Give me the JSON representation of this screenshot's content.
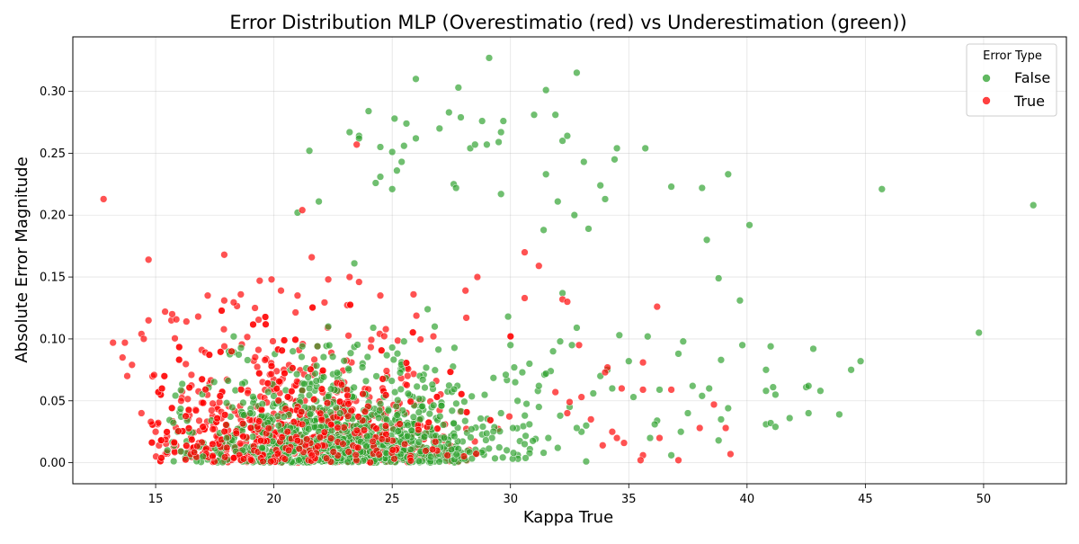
{
  "chart_data": {
    "type": "scatter",
    "title": "Error Distribution MLP (Overestimatio (red) vs Underestimation (green))",
    "xlabel": "Kappa True",
    "ylabel": "Absolute Error Magnitude",
    "xlim": [
      11.5,
      53.5
    ],
    "ylim": [
      -0.017,
      0.344
    ],
    "xticks": [
      15,
      20,
      25,
      30,
      35,
      40,
      45,
      50
    ],
    "yticks": [
      0.0,
      0.05,
      0.1,
      0.15,
      0.2,
      0.25,
      0.3
    ],
    "ytick_labels": [
      "0.00",
      "0.05",
      "0.10",
      "0.15",
      "0.20",
      "0.25",
      "0.30"
    ],
    "grid": true,
    "legend": {
      "title": "Error Type",
      "placement": "top-right",
      "entries": [
        "False",
        "True"
      ]
    },
    "colors": {
      "False": "#2ca02c",
      "True": "#ff0000"
    },
    "series": [
      {
        "name": "False",
        "points": [
          [
            15.5,
            0.01
          ],
          [
            17.0,
            0.005
          ],
          [
            18.3,
            0.102
          ],
          [
            18.0,
            0.02
          ],
          [
            19.0,
            0.04
          ],
          [
            19.5,
            0.012
          ],
          [
            20.2,
            0.03
          ],
          [
            20.8,
            0.09
          ],
          [
            21.0,
            0.202
          ],
          [
            21.5,
            0.252
          ],
          [
            21.9,
            0.211
          ],
          [
            21.5,
            0.06
          ],
          [
            22.3,
            0.11
          ],
          [
            22.8,
            0.04
          ],
          [
            23.2,
            0.267
          ],
          [
            23.6,
            0.264
          ],
          [
            23.6,
            0.262
          ],
          [
            23.4,
            0.161
          ],
          [
            24.0,
            0.284
          ],
          [
            24.3,
            0.226
          ],
          [
            24.5,
            0.231
          ],
          [
            24.5,
            0.255
          ],
          [
            25.0,
            0.221
          ],
          [
            25.0,
            0.251
          ],
          [
            25.1,
            0.278
          ],
          [
            25.2,
            0.236
          ],
          [
            25.4,
            0.243
          ],
          [
            25.5,
            0.256
          ],
          [
            25.6,
            0.274
          ],
          [
            26.0,
            0.262
          ],
          [
            26.0,
            0.31
          ],
          [
            27.0,
            0.27
          ],
          [
            27.4,
            0.283
          ],
          [
            27.6,
            0.225
          ],
          [
            27.7,
            0.222
          ],
          [
            27.8,
            0.303
          ],
          [
            27.9,
            0.279
          ],
          [
            28.3,
            0.254
          ],
          [
            28.5,
            0.257
          ],
          [
            28.8,
            0.276
          ],
          [
            29.0,
            0.257
          ],
          [
            29.1,
            0.327
          ],
          [
            29.5,
            0.259
          ],
          [
            29.6,
            0.267
          ],
          [
            29.6,
            0.217
          ],
          [
            29.7,
            0.276
          ],
          [
            29.9,
            0.118
          ],
          [
            31.0,
            0.281
          ],
          [
            31.5,
            0.301
          ],
          [
            31.5,
            0.233
          ],
          [
            31.4,
            0.188
          ],
          [
            31.9,
            0.281
          ],
          [
            32.0,
            0.211
          ],
          [
            32.2,
            0.26
          ],
          [
            32.4,
            0.264
          ],
          [
            32.7,
            0.2
          ],
          [
            32.8,
            0.315
          ],
          [
            33.1,
            0.243
          ],
          [
            33.3,
            0.189
          ],
          [
            33.8,
            0.224
          ],
          [
            34.0,
            0.213
          ],
          [
            34.4,
            0.245
          ],
          [
            34.5,
            0.254
          ],
          [
            35.7,
            0.254
          ],
          [
            36.8,
            0.223
          ],
          [
            38.1,
            0.222
          ],
          [
            38.3,
            0.18
          ],
          [
            38.8,
            0.149
          ],
          [
            39.2,
            0.233
          ],
          [
            39.7,
            0.131
          ],
          [
            40.1,
            0.192
          ],
          [
            45.7,
            0.221
          ],
          [
            52.1,
            0.208
          ],
          [
            49.8,
            0.105
          ],
          [
            34.6,
            0.103
          ],
          [
            35.0,
            0.082
          ],
          [
            35.8,
            0.102
          ],
          [
            37.3,
            0.098
          ],
          [
            37.1,
            0.088
          ],
          [
            38.9,
            0.083
          ],
          [
            39.8,
            0.095
          ],
          [
            41.0,
            0.094
          ],
          [
            42.8,
            0.092
          ],
          [
            44.8,
            0.082
          ],
          [
            44.4,
            0.075
          ],
          [
            40.8,
            0.075
          ],
          [
            41.1,
            0.061
          ],
          [
            41.2,
            0.055
          ],
          [
            40.8,
            0.058
          ],
          [
            42.5,
            0.061
          ],
          [
            42.6,
            0.062
          ],
          [
            43.1,
            0.058
          ],
          [
            41.8,
            0.036
          ],
          [
            42.6,
            0.04
          ],
          [
            43.9,
            0.039
          ],
          [
            40.8,
            0.031
          ],
          [
            41.0,
            0.032
          ],
          [
            41.2,
            0.029
          ],
          [
            38.9,
            0.035
          ],
          [
            39.2,
            0.044
          ],
          [
            38.8,
            0.018
          ],
          [
            38.4,
            0.06
          ],
          [
            38.1,
            0.054
          ],
          [
            37.7,
            0.062
          ],
          [
            37.5,
            0.04
          ],
          [
            36.8,
            0.006
          ],
          [
            37.2,
            0.025
          ],
          [
            36.3,
            0.059
          ],
          [
            36.2,
            0.034
          ],
          [
            36.1,
            0.031
          ],
          [
            35.9,
            0.02
          ],
          [
            35.2,
            0.053
          ],
          [
            34.3,
            0.06
          ],
          [
            34.1,
            0.075
          ],
          [
            33.8,
            0.07
          ],
          [
            33.5,
            0.056
          ],
          [
            33.2,
            0.03
          ],
          [
            33.0,
            0.025
          ],
          [
            32.8,
            0.109
          ],
          [
            32.6,
            0.095
          ],
          [
            32.2,
            0.137
          ],
          [
            32.1,
            0.098
          ],
          [
            31.8,
            0.09
          ],
          [
            31.7,
            0.074
          ],
          [
            31.5,
            0.072
          ],
          [
            31.2,
            0.062
          ],
          [
            30.8,
            0.08
          ],
          [
            30.5,
            0.073
          ],
          [
            30.2,
            0.065
          ],
          [
            30.0,
            0.095
          ],
          [
            29.8,
            0.071
          ],
          [
            30.3,
            0.05
          ],
          [
            30.8,
            0.031
          ],
          [
            31.2,
            0.045
          ],
          [
            31.6,
            0.02
          ],
          [
            32.1,
            0.038
          ],
          [
            32.5,
            0.045
          ],
          [
            32.8,
            0.028
          ],
          [
            33.2,
            0.001
          ],
          [
            32.0,
            0.012
          ],
          [
            31.4,
            0.008
          ],
          [
            30.6,
            0.015
          ],
          [
            30.1,
            0.028
          ],
          [
            29.6,
            0.04
          ],
          [
            26.5,
            0.124
          ],
          [
            26.8,
            0.11
          ],
          [
            25.5,
            0.098
          ],
          [
            24.2,
            0.109
          ],
          [
            21.2,
            0.094
          ]
        ],
        "cluster": {
          "description": "dense band of overlapping points",
          "x_range": [
            15.5,
            31.5
          ],
          "y_range": [
            0.0,
            0.1
          ]
        }
      },
      {
        "name": "True",
        "points": [
          [
            12.8,
            0.213
          ],
          [
            14.7,
            0.164
          ],
          [
            17.9,
            0.168
          ],
          [
            21.2,
            0.204
          ],
          [
            21.6,
            0.166
          ],
          [
            23.5,
            0.257
          ],
          [
            13.2,
            0.097
          ],
          [
            13.7,
            0.097
          ],
          [
            13.8,
            0.07
          ],
          [
            14.0,
            0.079
          ],
          [
            13.6,
            0.085
          ],
          [
            14.4,
            0.104
          ],
          [
            14.5,
            0.1
          ],
          [
            14.7,
            0.115
          ],
          [
            14.4,
            0.04
          ],
          [
            14.8,
            0.033
          ],
          [
            15.0,
            0.025
          ],
          [
            15.4,
            0.122
          ],
          [
            15.7,
            0.12
          ],
          [
            16.3,
            0.114
          ],
          [
            16.8,
            0.118
          ],
          [
            17.2,
            0.135
          ],
          [
            17.9,
            0.131
          ],
          [
            18.6,
            0.136
          ],
          [
            19.2,
            0.125
          ],
          [
            19.4,
            0.147
          ],
          [
            19.9,
            0.148
          ],
          [
            20.3,
            0.139
          ],
          [
            21.0,
            0.135
          ],
          [
            22.3,
            0.148
          ],
          [
            23.2,
            0.15
          ],
          [
            23.6,
            0.146
          ],
          [
            24.5,
            0.135
          ],
          [
            25.9,
            0.136
          ],
          [
            28.1,
            0.139
          ],
          [
            28.6,
            0.15
          ],
          [
            30.6,
            0.17
          ],
          [
            31.2,
            0.159
          ],
          [
            30.6,
            0.133
          ],
          [
            32.2,
            0.132
          ],
          [
            32.4,
            0.13
          ],
          [
            36.2,
            0.126
          ],
          [
            32.9,
            0.095
          ],
          [
            34.1,
            0.077
          ],
          [
            34.0,
            0.073
          ],
          [
            34.7,
            0.06
          ],
          [
            35.6,
            0.059
          ],
          [
            35.6,
            0.081
          ],
          [
            36.8,
            0.059
          ],
          [
            38.6,
            0.047
          ],
          [
            39.1,
            0.028
          ],
          [
            38.0,
            0.028
          ],
          [
            37.1,
            0.002
          ],
          [
            36.3,
            0.02
          ],
          [
            35.6,
            0.006
          ],
          [
            35.5,
            0.002
          ],
          [
            34.5,
            0.02
          ],
          [
            34.8,
            0.016
          ],
          [
            33.9,
            0.014
          ],
          [
            34.3,
            0.025
          ],
          [
            39.3,
            0.007
          ],
          [
            33.4,
            0.035
          ],
          [
            33.0,
            0.053
          ],
          [
            32.5,
            0.049
          ],
          [
            32.4,
            0.04
          ],
          [
            31.9,
            0.057
          ]
        ],
        "cluster": {
          "description": "dense band of overlapping points",
          "x_range": [
            14.8,
            30.5
          ],
          "y_range": [
            0.0,
            0.13
          ]
        }
      }
    ]
  }
}
